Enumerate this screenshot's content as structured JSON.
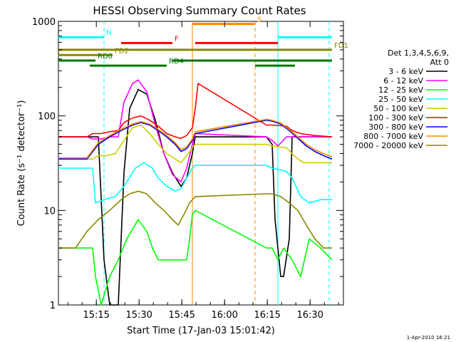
{
  "chart_data": {
    "type": "line",
    "title": "HESSI Observing Summary Count Rates",
    "xlabel": "Start Time (17-Jan-03 15:01:42)",
    "ylabel": "Count Rate (s⁻¹ detector⁻¹)",
    "yscale": "log",
    "ylim": [
      1,
      1000
    ],
    "xlim_minutes": [
      0,
      100
    ],
    "x_ticks": [
      {
        "label": "15:15",
        "m": 13.3
      },
      {
        "label": "15:30",
        "m": 28.3
      },
      {
        "label": "15:45",
        "m": 43.3
      },
      {
        "label": "16:00",
        "m": 58.3
      },
      {
        "label": "16:15",
        "m": 73.3
      },
      {
        "label": "16:30",
        "m": 88.3
      }
    ],
    "y_ticks": [
      {
        "label": "1",
        "v": 1
      },
      {
        "label": "10",
        "v": 10
      },
      {
        "label": "100",
        "v": 100
      },
      {
        "label": "1000",
        "v": 1000
      }
    ],
    "legend_header": [
      "Det 1,3,4,5,6,9,",
      "Att 0"
    ],
    "legend_position": "right",
    "series": [
      {
        "name": "3 - 6 keV",
        "color": "#000000",
        "points": [
          [
            0,
            60
          ],
          [
            10,
            60
          ],
          [
            14,
            60
          ],
          [
            16,
            3
          ],
          [
            18,
            1
          ],
          [
            21,
            1
          ],
          [
            23,
            25
          ],
          [
            25,
            120
          ],
          [
            28,
            190
          ],
          [
            31,
            170
          ],
          [
            34,
            90
          ],
          [
            37,
            40
          ],
          [
            40,
            25
          ],
          [
            43,
            18
          ],
          [
            45,
            22
          ],
          [
            47,
            40
          ],
          [
            48,
            60
          ],
          [
            73,
            60
          ],
          [
            75,
            50
          ],
          [
            76,
            8
          ],
          [
            78,
            2
          ],
          [
            79,
            2
          ],
          [
            81,
            5
          ],
          [
            82,
            60
          ],
          [
            95,
            60
          ],
          [
            96,
            60
          ]
        ]
      },
      {
        "name": "6 - 12 keV",
        "color": "#ff00ff",
        "points": [
          [
            0,
            60
          ],
          [
            10,
            60
          ],
          [
            12,
            57
          ],
          [
            15,
            57
          ],
          [
            18,
            60
          ],
          [
            21,
            60
          ],
          [
            23,
            140
          ],
          [
            26,
            220
          ],
          [
            28,
            240
          ],
          [
            31,
            180
          ],
          [
            34,
            80
          ],
          [
            37,
            40
          ],
          [
            40,
            24
          ],
          [
            43,
            20
          ],
          [
            45,
            28
          ],
          [
            47,
            50
          ],
          [
            48,
            65
          ],
          [
            73,
            60
          ],
          [
            75,
            55
          ],
          [
            77,
            48
          ],
          [
            80,
            60
          ],
          [
            95,
            60
          ],
          [
            96,
            60
          ]
        ]
      },
      {
        "name": "12 - 25 keV",
        "color": "#00ff00",
        "points": [
          [
            0,
            4
          ],
          [
            10,
            4
          ],
          [
            12,
            4
          ],
          [
            13,
            2
          ],
          [
            15,
            1
          ],
          [
            18,
            2
          ],
          [
            21,
            3
          ],
          [
            24,
            5
          ],
          [
            28,
            8
          ],
          [
            31,
            6
          ],
          [
            33,
            4
          ],
          [
            35,
            3
          ],
          [
            40,
            3
          ],
          [
            43,
            3
          ],
          [
            45,
            3
          ],
          [
            46,
            5
          ],
          [
            47,
            9
          ],
          [
            48,
            10
          ],
          [
            73,
            4
          ],
          [
            75,
            4
          ],
          [
            77,
            3
          ],
          [
            79,
            4
          ],
          [
            82,
            3
          ],
          [
            85,
            2
          ],
          [
            88,
            5
          ],
          [
            92,
            4
          ],
          [
            96,
            3
          ]
        ]
      },
      {
        "name": "25 - 50 keV",
        "color": "#00ffff",
        "points": [
          [
            0,
            28
          ],
          [
            10,
            28
          ],
          [
            12,
            28
          ],
          [
            13,
            12
          ],
          [
            16,
            13
          ],
          [
            20,
            14
          ],
          [
            23,
            18
          ],
          [
            27,
            28
          ],
          [
            30,
            32
          ],
          [
            33,
            28
          ],
          [
            35,
            22
          ],
          [
            38,
            18
          ],
          [
            41,
            16
          ],
          [
            43,
            17
          ],
          [
            45,
            22
          ],
          [
            47,
            28
          ],
          [
            48,
            30
          ],
          [
            73,
            30
          ],
          [
            75,
            28
          ],
          [
            80,
            26
          ],
          [
            82,
            22
          ],
          [
            85,
            14
          ],
          [
            88,
            12
          ],
          [
            92,
            13
          ],
          [
            96,
            13
          ]
        ]
      },
      {
        "name": "50 - 100 keV",
        "color": "#cccc00",
        "points": [
          [
            0,
            35
          ],
          [
            10,
            35
          ],
          [
            12,
            35
          ],
          [
            14,
            38
          ],
          [
            17,
            38
          ],
          [
            20,
            40
          ],
          [
            23,
            55
          ],
          [
            26,
            75
          ],
          [
            29,
            80
          ],
          [
            32,
            65
          ],
          [
            35,
            50
          ],
          [
            38,
            40
          ],
          [
            41,
            35
          ],
          [
            43,
            32
          ],
          [
            45,
            38
          ],
          [
            47,
            46
          ],
          [
            48,
            50
          ],
          [
            73,
            50
          ],
          [
            75,
            48
          ],
          [
            80,
            46
          ],
          [
            82,
            40
          ],
          [
            84,
            35
          ],
          [
            86,
            32
          ],
          [
            90,
            32
          ],
          [
            96,
            32
          ]
        ]
      },
      {
        "name": "100 - 300 keV",
        "color": "#ff0000",
        "points": [
          [
            0,
            60
          ],
          [
            10,
            60
          ],
          [
            12,
            65
          ],
          [
            15,
            65
          ],
          [
            18,
            68
          ],
          [
            21,
            70
          ],
          [
            23,
            85
          ],
          [
            26,
            95
          ],
          [
            29,
            100
          ],
          [
            32,
            90
          ],
          [
            35,
            78
          ],
          [
            38,
            65
          ],
          [
            41,
            60
          ],
          [
            43,
            58
          ],
          [
            45,
            62
          ],
          [
            47,
            75
          ],
          [
            48,
            120
          ],
          [
            49,
            220
          ],
          [
            73,
            80
          ],
          [
            75,
            80
          ],
          [
            80,
            78
          ],
          [
            82,
            70
          ],
          [
            85,
            65
          ],
          [
            90,
            62
          ],
          [
            96,
            60
          ]
        ]
      },
      {
        "name": "300 - 800 keV",
        "color": "#0000ff",
        "points": [
          [
            0,
            35
          ],
          [
            10,
            35
          ],
          [
            14,
            50
          ],
          [
            18,
            60
          ],
          [
            22,
            70
          ],
          [
            26,
            80
          ],
          [
            29,
            85
          ],
          [
            32,
            80
          ],
          [
            35,
            70
          ],
          [
            38,
            60
          ],
          [
            41,
            50
          ],
          [
            43,
            42
          ],
          [
            45,
            45
          ],
          [
            47,
            55
          ],
          [
            48,
            65
          ],
          [
            73,
            90
          ],
          [
            75,
            88
          ],
          [
            78,
            82
          ],
          [
            81,
            70
          ],
          [
            84,
            58
          ],
          [
            87,
            48
          ],
          [
            90,
            42
          ],
          [
            93,
            38
          ],
          [
            96,
            35
          ]
        ]
      },
      {
        "name": "800 - 7000 keV",
        "color": "#ff8800",
        "points": [
          [
            0,
            36
          ],
          [
            10,
            36
          ],
          [
            14,
            52
          ],
          [
            18,
            62
          ],
          [
            22,
            72
          ],
          [
            26,
            82
          ],
          [
            29,
            87
          ],
          [
            32,
            82
          ],
          [
            35,
            72
          ],
          [
            38,
            62
          ],
          [
            41,
            52
          ],
          [
            43,
            44
          ],
          [
            45,
            47
          ],
          [
            47,
            57
          ],
          [
            48,
            68
          ],
          [
            73,
            92
          ],
          [
            75,
            90
          ],
          [
            78,
            84
          ],
          [
            81,
            72
          ],
          [
            84,
            60
          ],
          [
            87,
            50
          ],
          [
            90,
            44
          ],
          [
            93,
            40
          ],
          [
            96,
            37
          ]
        ]
      },
      {
        "name": "7000 - 20000 keV",
        "color": "#888800",
        "points": [
          [
            0,
            4
          ],
          [
            6,
            4
          ],
          [
            10,
            6
          ],
          [
            14,
            8
          ],
          [
            18,
            10
          ],
          [
            22,
            13
          ],
          [
            25,
            15
          ],
          [
            28,
            16
          ],
          [
            31,
            15
          ],
          [
            34,
            12
          ],
          [
            37,
            10
          ],
          [
            40,
            8
          ],
          [
            42,
            7
          ],
          [
            44,
            9
          ],
          [
            46,
            12
          ],
          [
            48,
            14
          ],
          [
            73,
            15
          ],
          [
            75,
            15
          ],
          [
            78,
            14
          ],
          [
            81,
            12
          ],
          [
            84,
            10
          ],
          [
            87,
            7
          ],
          [
            90,
            5
          ],
          [
            93,
            4
          ],
          [
            96,
            4
          ]
        ]
      }
    ],
    "bars": [
      {
        "label": "N",
        "color": "#00ffff",
        "y": 680,
        "segments": [
          [
            0,
            16
          ],
          [
            77,
            96
          ]
        ]
      },
      {
        "label": "S",
        "color": "#ff8800",
        "y": 940,
        "segments": [
          [
            47,
            69
          ]
        ]
      },
      {
        "label": "F",
        "color": "#ff0000",
        "y": 590,
        "segments": [
          [
            22,
            40
          ],
          [
            48,
            77
          ]
        ]
      },
      {
        "label": "FD1",
        "color": "#888800",
        "y": 500,
        "segments": [
          [
            0,
            96
          ]
        ]
      },
      {
        "label": "FD2",
        "color": "#888800",
        "y": 440,
        "segments": [
          [
            0,
            19
          ]
        ]
      },
      {
        "label": "RD0",
        "color": "#007700",
        "y": 385,
        "segments": [
          [
            0,
            13
          ],
          [
            40,
            96
          ]
        ]
      },
      {
        "label": "RD4",
        "color": "#007700",
        "y": 340,
        "segments": [
          [
            11,
            38
          ],
          [
            69,
            83
          ]
        ]
      }
    ],
    "vlines": [
      {
        "m": 16,
        "color": "#00ffff",
        "style": "dashed"
      },
      {
        "m": 47,
        "color": "#ff8800",
        "style": "solid"
      },
      {
        "m": 69,
        "color": "#ff8800",
        "style": "dashed"
      },
      {
        "m": 77,
        "color": "#00ffff",
        "style": "solid"
      },
      {
        "m": 95,
        "color": "#00ffff",
        "style": "dashed"
      }
    ],
    "date_stamp": "1-Apr-2010 16:21"
  }
}
